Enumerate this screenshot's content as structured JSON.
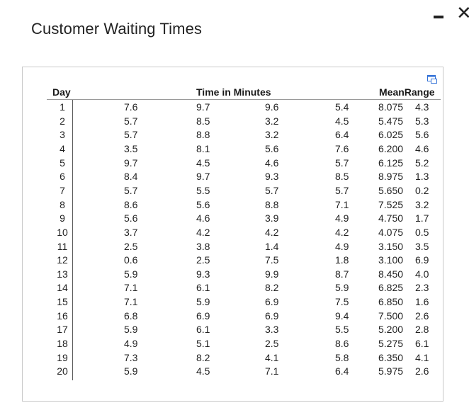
{
  "window": {
    "title": "Customer Waiting Times",
    "minimize_icon": "minimize-icon",
    "close_glyph": "✕",
    "copy_icon": "copy-icon"
  },
  "table": {
    "headers": {
      "day": "Day",
      "time": "Time in Minutes",
      "mean_range": "MeanRange"
    },
    "rows": [
      {
        "day": "1",
        "t1": "7.6",
        "t2": "9.7",
        "t3": "9.6",
        "t4": "5.4",
        "mean": "8.075",
        "range": "4.3"
      },
      {
        "day": "2",
        "t1": "5.7",
        "t2": "8.5",
        "t3": "3.2",
        "t4": "4.5",
        "mean": "5.475",
        "range": "5.3"
      },
      {
        "day": "3",
        "t1": "5.7",
        "t2": "8.8",
        "t3": "3.2",
        "t4": "6.4",
        "mean": "6.025",
        "range": "5.6"
      },
      {
        "day": "4",
        "t1": "3.5",
        "t2": "8.1",
        "t3": "5.6",
        "t4": "7.6",
        "mean": "6.200",
        "range": "4.6"
      },
      {
        "day": "5",
        "t1": "9.7",
        "t2": "4.5",
        "t3": "4.6",
        "t4": "5.7",
        "mean": "6.125",
        "range": "5.2"
      },
      {
        "day": "6",
        "t1": "8.4",
        "t2": "9.7",
        "t3": "9.3",
        "t4": "8.5",
        "mean": "8.975",
        "range": "1.3"
      },
      {
        "day": "7",
        "t1": "5.7",
        "t2": "5.5",
        "t3": "5.7",
        "t4": "5.7",
        "mean": "5.650",
        "range": "0.2"
      },
      {
        "day": "8",
        "t1": "8.6",
        "t2": "5.6",
        "t3": "8.8",
        "t4": "7.1",
        "mean": "7.525",
        "range": "3.2"
      },
      {
        "day": "9",
        "t1": "5.6",
        "t2": "4.6",
        "t3": "3.9",
        "t4": "4.9",
        "mean": "4.750",
        "range": "1.7"
      },
      {
        "day": "10",
        "t1": "3.7",
        "t2": "4.2",
        "t3": "4.2",
        "t4": "4.2",
        "mean": "4.075",
        "range": "0.5"
      },
      {
        "day": "11",
        "t1": "2.5",
        "t2": "3.8",
        "t3": "1.4",
        "t4": "4.9",
        "mean": "3.150",
        "range": "3.5"
      },
      {
        "day": "12",
        "t1": "0.6",
        "t2": "2.5",
        "t3": "7.5",
        "t4": "1.8",
        "mean": "3.100",
        "range": "6.9"
      },
      {
        "day": "13",
        "t1": "5.9",
        "t2": "9.3",
        "t3": "9.9",
        "t4": "8.7",
        "mean": "8.450",
        "range": "4.0"
      },
      {
        "day": "14",
        "t1": "7.1",
        "t2": "6.1",
        "t3": "8.2",
        "t4": "5.9",
        "mean": "6.825",
        "range": "2.3"
      },
      {
        "day": "15",
        "t1": "7.1",
        "t2": "5.9",
        "t3": "6.9",
        "t4": "7.5",
        "mean": "6.850",
        "range": "1.6"
      },
      {
        "day": "16",
        "t1": "6.8",
        "t2": "6.9",
        "t3": "6.9",
        "t4": "9.4",
        "mean": "7.500",
        "range": "2.6"
      },
      {
        "day": "17",
        "t1": "5.9",
        "t2": "6.1",
        "t3": "3.3",
        "t4": "5.5",
        "mean": "5.200",
        "range": "2.8"
      },
      {
        "day": "18",
        "t1": "4.9",
        "t2": "5.1",
        "t3": "2.5",
        "t4": "8.6",
        "mean": "5.275",
        "range": "6.1"
      },
      {
        "day": "19",
        "t1": "7.3",
        "t2": "8.2",
        "t3": "4.1",
        "t4": "5.8",
        "mean": "6.350",
        "range": "4.1"
      },
      {
        "day": "20",
        "t1": "5.9",
        "t2": "4.5",
        "t3": "7.1",
        "t4": "6.4",
        "mean": "5.975",
        "range": "2.6"
      }
    ]
  },
  "colors": {
    "text": "#222222",
    "border": "#c8c8c8",
    "icon_accent": "#2f6fd6"
  }
}
